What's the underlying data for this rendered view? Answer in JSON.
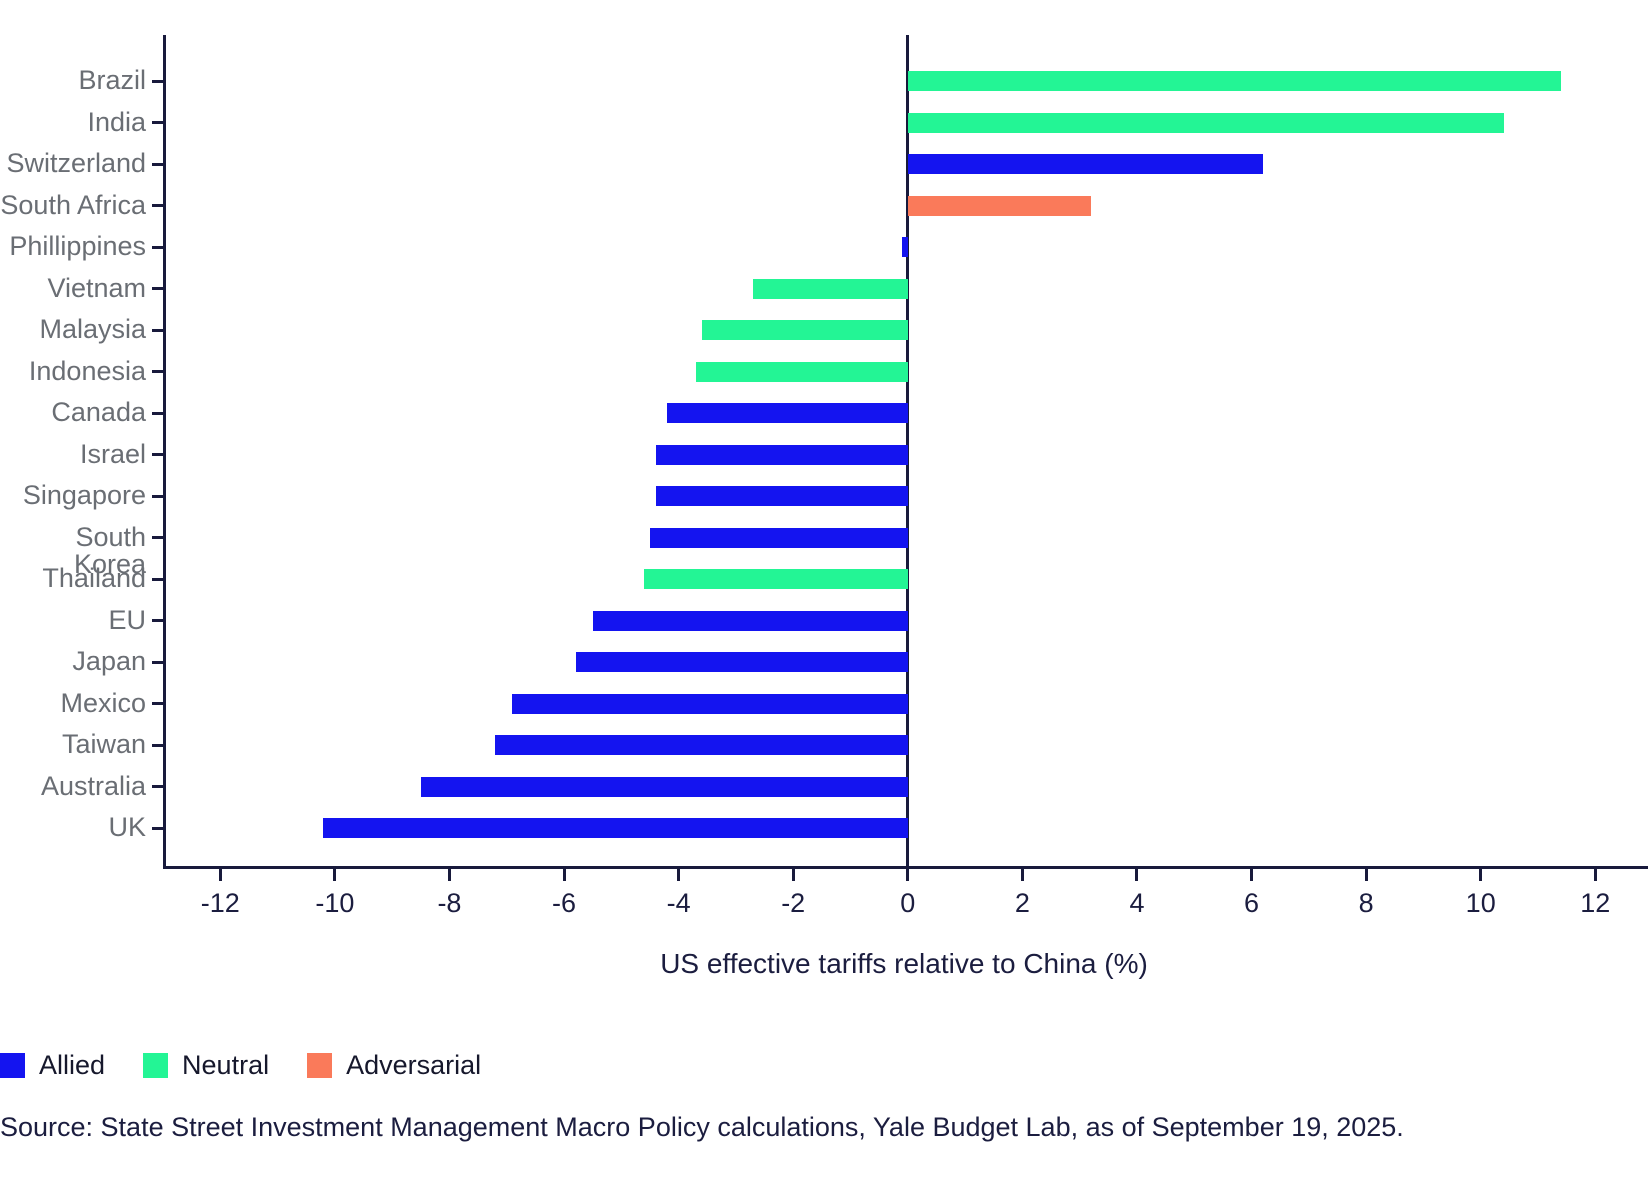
{
  "chart_data": {
    "type": "bar",
    "orientation": "horizontal",
    "xlabel": "US effective tariffs relative to China (%)",
    "xlim": [
      -13,
      12.92
    ],
    "x_ticks": [
      -12,
      -10,
      -8,
      -6,
      -4,
      -2,
      0,
      2,
      4,
      6,
      8,
      10,
      12
    ],
    "grid": false,
    "legend_position": "bottom-left",
    "categories": [
      "Brazil",
      "India",
      "Switzerland",
      "South Africa",
      "Phillippines",
      "Vietnam",
      "Malaysia",
      "Indonesia",
      "Canada",
      "Israel",
      "Singapore",
      "South Korea",
      "Thailand",
      "EU",
      "Japan",
      "Mexico",
      "Taiwan",
      "Australia",
      "UK"
    ],
    "values": [
      11.4,
      10.4,
      6.2,
      3.2,
      -0.1,
      -2.7,
      -3.6,
      -3.7,
      -4.2,
      -4.4,
      -4.4,
      -4.5,
      -4.6,
      -5.5,
      -5.8,
      -6.9,
      -7.2,
      -8.5,
      -10.2
    ],
    "groups": [
      "Neutral",
      "Neutral",
      "Allied",
      "Adversarial",
      "Allied",
      "Neutral",
      "Neutral",
      "Neutral",
      "Allied",
      "Allied",
      "Allied",
      "Allied",
      "Neutral",
      "Allied",
      "Allied",
      "Allied",
      "Allied",
      "Allied",
      "Allied"
    ]
  },
  "legend": {
    "items": [
      {
        "label": "Allied",
        "color": "#1414f0"
      },
      {
        "label": "Neutral",
        "color": "#23f595"
      },
      {
        "label": "Adversarial",
        "color": "#fa7a5a"
      }
    ]
  },
  "source": {
    "text": "Source: State Street Investment Management Macro Policy calculations, Yale Budget Lab, as of September 19, 2025."
  },
  "colors": {
    "allied": "#1414f0",
    "neutral": "#23f595",
    "adversarial": "#fa7a5a",
    "axis": "#181a3c",
    "tick_text": "#1b1d3f",
    "category_text": "#6a6e74"
  }
}
